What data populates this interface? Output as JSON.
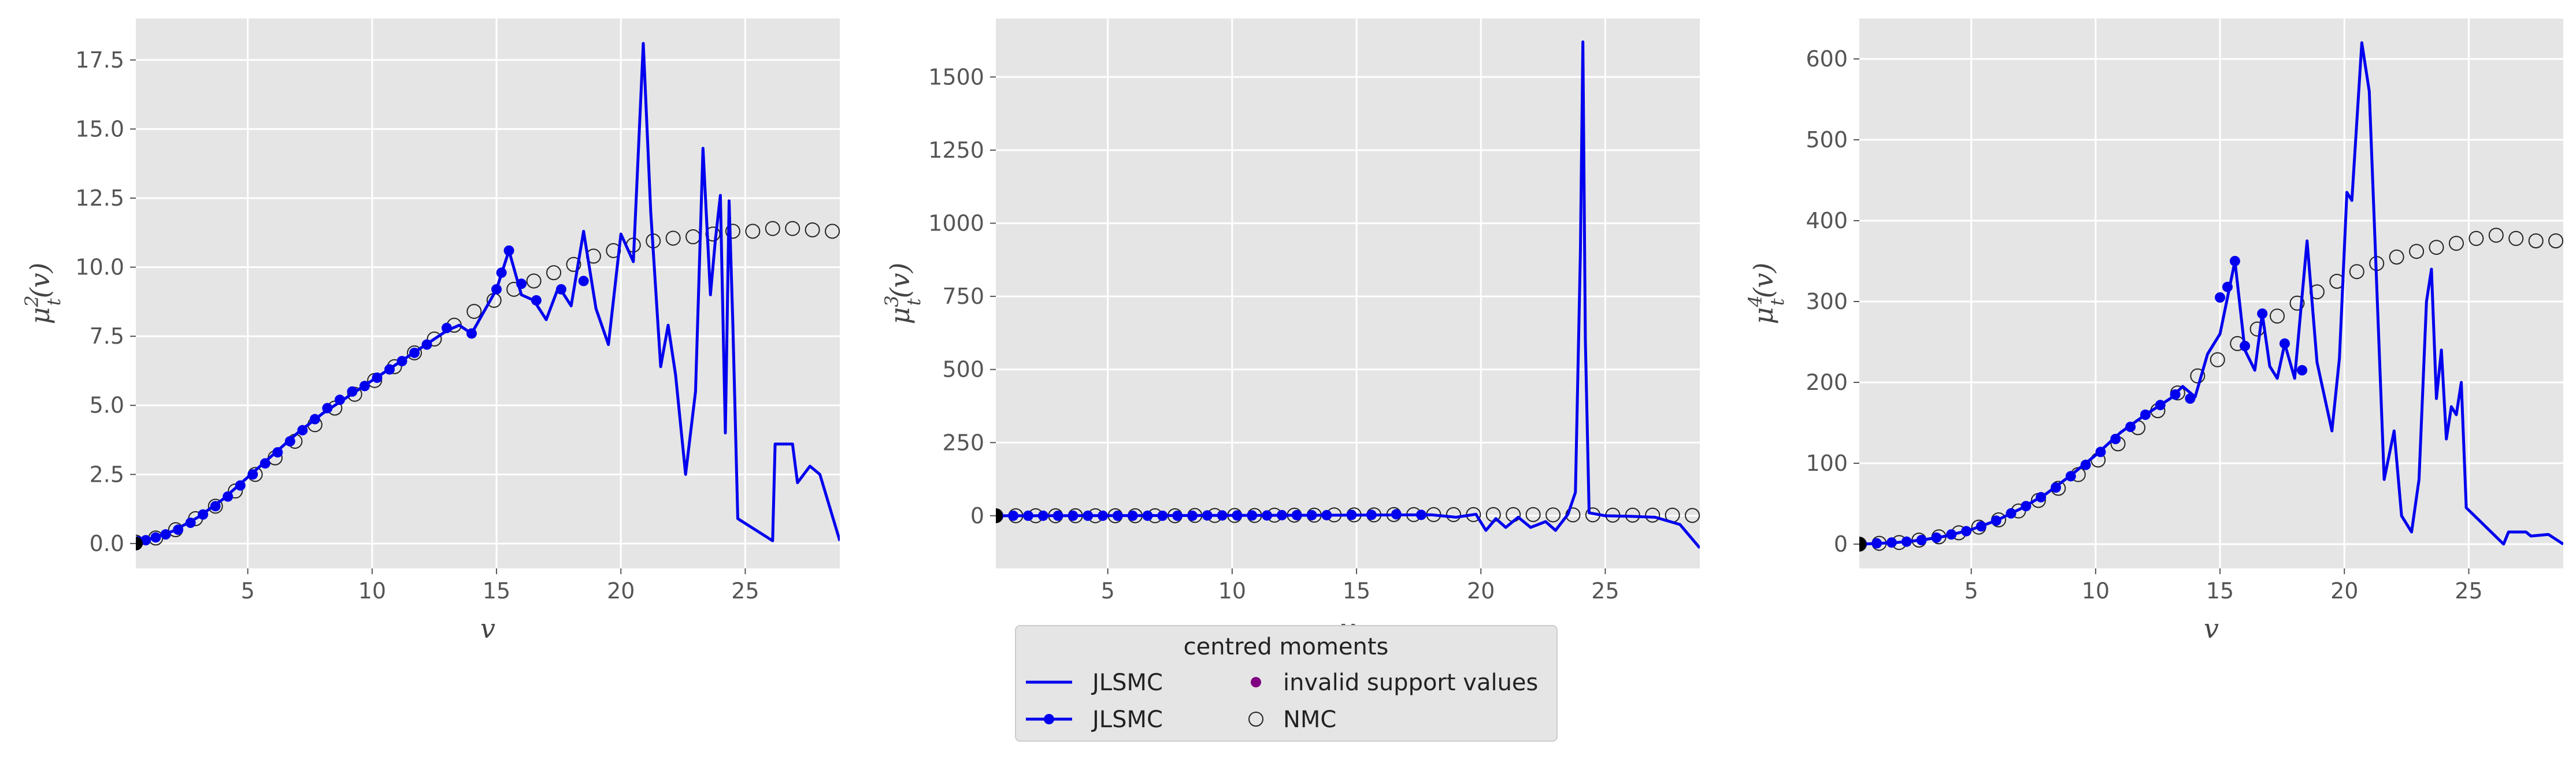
{
  "colors": {
    "jlsmc": "#0000ee",
    "invalid": "#800080",
    "nmc_edge": "#222222",
    "panel_bg": "#e5e5e5",
    "grid": "#ffffff"
  },
  "legend": {
    "title": "centred moments",
    "entries": [
      {
        "label": "JLSMC",
        "kind": "line"
      },
      {
        "label": "JLSMC",
        "kind": "line-marker"
      },
      {
        "label": "invalid support values",
        "kind": "dot"
      },
      {
        "label": "NMC",
        "kind": "open-circle"
      }
    ]
  },
  "chart_data": [
    {
      "type": "line",
      "title": "",
      "xlabel": "v",
      "ylabel": "μ_t^2(v)",
      "ylabel_base": "μ",
      "ylabel_sub": "t",
      "ylabel_sup": "2",
      "ylabel_tail": "(v)",
      "xlim": [
        0.5,
        28.8
      ],
      "ylim": [
        -0.9,
        19.0
      ],
      "xticks": [
        5,
        10,
        15,
        20,
        25
      ],
      "yticks": [
        0.0,
        2.5,
        5.0,
        7.5,
        10.0,
        12.5,
        15.0,
        17.5
      ],
      "ytick_labels": [
        "0.0",
        "2.5",
        "5.0",
        "7.5",
        "10.0",
        "12.5",
        "15.0",
        "17.5"
      ],
      "jlsmc_line": [
        [
          0.5,
          0.05
        ],
        [
          1,
          0.15
        ],
        [
          2,
          0.45
        ],
        [
          3,
          0.95
        ],
        [
          4,
          1.6
        ],
        [
          5,
          2.4
        ],
        [
          6,
          3.2
        ],
        [
          7,
          4.0
        ],
        [
          8,
          4.7
        ],
        [
          9,
          5.3
        ],
        [
          10,
          5.9
        ],
        [
          11,
          6.5
        ],
        [
          12,
          7.1
        ],
        [
          13,
          7.7
        ],
        [
          13.5,
          7.9
        ],
        [
          14,
          7.6
        ],
        [
          14.5,
          8.4
        ],
        [
          15,
          9.2
        ],
        [
          15.5,
          10.6
        ],
        [
          16,
          9.0
        ],
        [
          16.5,
          8.8
        ],
        [
          17,
          8.1
        ],
        [
          17.5,
          9.3
        ],
        [
          18,
          8.6
        ],
        [
          18.5,
          11.3
        ],
        [
          19,
          8.5
        ],
        [
          19.5,
          7.2
        ],
        [
          20,
          11.2
        ],
        [
          20.5,
          10.2
        ],
        [
          20.9,
          18.1
        ],
        [
          21.2,
          12.0
        ],
        [
          21.6,
          6.4
        ],
        [
          21.9,
          7.9
        ],
        [
          22.2,
          6.1
        ],
        [
          22.6,
          2.5
        ],
        [
          23.0,
          5.5
        ],
        [
          23.3,
          14.3
        ],
        [
          23.6,
          9.0
        ],
        [
          23.8,
          11.0
        ],
        [
          24.0,
          12.6
        ],
        [
          24.2,
          4.0
        ],
        [
          24.35,
          12.4
        ],
        [
          24.5,
          8.0
        ],
        [
          24.7,
          0.9
        ],
        [
          26.1,
          0.1
        ],
        [
          26.2,
          3.6
        ],
        [
          26.9,
          3.6
        ],
        [
          27.1,
          2.2
        ],
        [
          27.6,
          2.8
        ],
        [
          28.0,
          2.5
        ],
        [
          28.5,
          1.0
        ],
        [
          28.8,
          0.1
        ]
      ],
      "jlsmc_markers": [
        [
          0.6,
          0.08
        ],
        [
          0.9,
          0.12
        ],
        [
          1.3,
          0.22
        ],
        [
          1.7,
          0.33
        ],
        [
          2.2,
          0.5
        ],
        [
          2.7,
          0.75
        ],
        [
          3.2,
          1.05
        ],
        [
          3.7,
          1.35
        ],
        [
          4.2,
          1.7
        ],
        [
          4.7,
          2.1
        ],
        [
          5.2,
          2.5
        ],
        [
          5.7,
          2.9
        ],
        [
          6.2,
          3.3
        ],
        [
          6.7,
          3.7
        ],
        [
          7.2,
          4.1
        ],
        [
          7.7,
          4.5
        ],
        [
          8.2,
          4.9
        ],
        [
          8.7,
          5.2
        ],
        [
          9.2,
          5.5
        ],
        [
          9.7,
          5.7
        ],
        [
          10.2,
          6.0
        ],
        [
          10.7,
          6.3
        ],
        [
          11.2,
          6.6
        ],
        [
          11.7,
          6.9
        ],
        [
          12.2,
          7.2
        ],
        [
          13.0,
          7.8
        ],
        [
          14.0,
          7.6
        ],
        [
          15.0,
          9.2
        ],
        [
          15.2,
          9.8
        ],
        [
          15.5,
          10.6
        ],
        [
          16.0,
          9.4
        ],
        [
          16.6,
          8.8
        ],
        [
          17.6,
          9.2
        ],
        [
          18.5,
          9.5
        ]
      ],
      "invalid_points": [],
      "nmc_points": [
        [
          0.5,
          0.05
        ],
        [
          1.3,
          0.2
        ],
        [
          2.1,
          0.5
        ],
        [
          2.9,
          0.9
        ],
        [
          3.7,
          1.35
        ],
        [
          4.5,
          1.9
        ],
        [
          5.3,
          2.5
        ],
        [
          6.1,
          3.1
        ],
        [
          6.9,
          3.7
        ],
        [
          7.7,
          4.3
        ],
        [
          8.5,
          4.9
        ],
        [
          9.3,
          5.4
        ],
        [
          10.1,
          5.9
        ],
        [
          10.9,
          6.4
        ],
        [
          11.7,
          6.9
        ],
        [
          12.5,
          7.4
        ],
        [
          13.3,
          7.9
        ],
        [
          14.1,
          8.4
        ],
        [
          14.9,
          8.8
        ],
        [
          15.7,
          9.2
        ],
        [
          16.5,
          9.5
        ],
        [
          17.3,
          9.8
        ],
        [
          18.1,
          10.1
        ],
        [
          18.9,
          10.4
        ],
        [
          19.7,
          10.6
        ],
        [
          20.5,
          10.8
        ],
        [
          21.3,
          10.95
        ],
        [
          22.1,
          11.05
        ],
        [
          22.9,
          11.1
        ],
        [
          23.7,
          11.2
        ],
        [
          24.5,
          11.3
        ],
        [
          25.3,
          11.3
        ],
        [
          26.1,
          11.4
        ],
        [
          26.9,
          11.4
        ],
        [
          27.7,
          11.35
        ],
        [
          28.5,
          11.3
        ]
      ]
    },
    {
      "type": "line",
      "title": "",
      "xlabel": "v",
      "ylabel": "μ_t^3(v)",
      "ylabel_base": "μ",
      "ylabel_sub": "t",
      "ylabel_sup": "3",
      "ylabel_tail": "(v)",
      "xlim": [
        0.5,
        28.8
      ],
      "ylim": [
        -180,
        1700
      ],
      "xticks": [
        5,
        10,
        15,
        20,
        25
      ],
      "yticks": [
        0,
        250,
        500,
        750,
        1000,
        1250,
        1500
      ],
      "ytick_labels": [
        "0",
        "250",
        "500",
        "750",
        "1000",
        "1250",
        "1500"
      ],
      "jlsmc_line": [
        [
          0.5,
          0
        ],
        [
          5,
          0.5
        ],
        [
          10,
          1
        ],
        [
          15,
          2
        ],
        [
          18,
          3
        ],
        [
          19,
          -5
        ],
        [
          19.8,
          5
        ],
        [
          20.2,
          -50
        ],
        [
          20.6,
          -10
        ],
        [
          21.0,
          -40
        ],
        [
          21.5,
          -5
        ],
        [
          22.0,
          -40
        ],
        [
          22.6,
          -20
        ],
        [
          23.0,
          -50
        ],
        [
          23.5,
          5
        ],
        [
          23.8,
          80
        ],
        [
          24.0,
          900
        ],
        [
          24.1,
          1620
        ],
        [
          24.2,
          600
        ],
        [
          24.35,
          10
        ],
        [
          25,
          0
        ],
        [
          26,
          -2
        ],
        [
          27,
          -5
        ],
        [
          28,
          -30
        ],
        [
          28.8,
          -110
        ]
      ],
      "jlsmc_markers": [
        [
          0.6,
          0
        ],
        [
          1.2,
          0
        ],
        [
          1.8,
          0
        ],
        [
          2.4,
          0
        ],
        [
          3.0,
          0
        ],
        [
          3.6,
          0
        ],
        [
          4.2,
          0
        ],
        [
          4.8,
          0
        ],
        [
          5.4,
          0
        ],
        [
          6.0,
          0
        ],
        [
          6.6,
          0
        ],
        [
          7.2,
          0
        ],
        [
          7.8,
          0
        ],
        [
          8.4,
          0
        ],
        [
          9.0,
          1
        ],
        [
          9.6,
          1
        ],
        [
          10.2,
          1
        ],
        [
          10.8,
          1
        ],
        [
          11.4,
          1
        ],
        [
          12.0,
          2
        ],
        [
          12.6,
          2
        ],
        [
          13.2,
          2
        ],
        [
          13.8,
          2
        ],
        [
          14.8,
          3
        ],
        [
          15.6,
          3
        ],
        [
          16.6,
          5
        ],
        [
          17.6,
          3
        ]
      ],
      "invalid_points": [],
      "nmc_points": [
        [
          0.5,
          0
        ],
        [
          1.3,
          0
        ],
        [
          2.1,
          0
        ],
        [
          2.9,
          0
        ],
        [
          3.7,
          0
        ],
        [
          4.5,
          0
        ],
        [
          5.3,
          0
        ],
        [
          6.1,
          0
        ],
        [
          6.9,
          0
        ],
        [
          7.7,
          0
        ],
        [
          8.5,
          1
        ],
        [
          9.3,
          1
        ],
        [
          10.1,
          1
        ],
        [
          10.9,
          1
        ],
        [
          11.7,
          2
        ],
        [
          12.5,
          2
        ],
        [
          13.3,
          2
        ],
        [
          14.1,
          3
        ],
        [
          14.9,
          3
        ],
        [
          15.7,
          3
        ],
        [
          16.5,
          4
        ],
        [
          17.3,
          4
        ],
        [
          18.1,
          4
        ],
        [
          18.9,
          4
        ],
        [
          19.7,
          4
        ],
        [
          20.5,
          4
        ],
        [
          21.3,
          4
        ],
        [
          22.1,
          4
        ],
        [
          22.9,
          3
        ],
        [
          23.7,
          3
        ],
        [
          24.5,
          3
        ],
        [
          25.3,
          2
        ],
        [
          26.1,
          2
        ],
        [
          26.9,
          2
        ],
        [
          27.7,
          2
        ],
        [
          28.5,
          1
        ]
      ]
    },
    {
      "type": "line",
      "title": "",
      "xlabel": "v",
      "ylabel": "μ_t^4(v)",
      "ylabel_base": "μ",
      "ylabel_sub": "t",
      "ylabel_sup": "4",
      "ylabel_tail": "(v)",
      "xlim": [
        0.5,
        28.8
      ],
      "ylim": [
        -30,
        650
      ],
      "xticks": [
        5,
        10,
        15,
        20,
        25
      ],
      "yticks": [
        0,
        100,
        200,
        300,
        400,
        500,
        600
      ],
      "ytick_labels": [
        "0",
        "100",
        "200",
        "300",
        "400",
        "500",
        "600"
      ],
      "jlsmc_line": [
        [
          0.5,
          0
        ],
        [
          1,
          0.5
        ],
        [
          2,
          2
        ],
        [
          3,
          5
        ],
        [
          4,
          10
        ],
        [
          5,
          18
        ],
        [
          6,
          29
        ],
        [
          7,
          44
        ],
        [
          8,
          62
        ],
        [
          9,
          85
        ],
        [
          10,
          110
        ],
        [
          11,
          138
        ],
        [
          12,
          160
        ],
        [
          13,
          180
        ],
        [
          13.5,
          195
        ],
        [
          14,
          182
        ],
        [
          14.5,
          235
        ],
        [
          15,
          260
        ],
        [
          15.3,
          305
        ],
        [
          15.6,
          350
        ],
        [
          16.0,
          240
        ],
        [
          16.4,
          215
        ],
        [
          16.7,
          285
        ],
        [
          17.0,
          220
        ],
        [
          17.3,
          205
        ],
        [
          17.6,
          248
        ],
        [
          18.0,
          205
        ],
        [
          18.5,
          375
        ],
        [
          18.9,
          225
        ],
        [
          19.5,
          140
        ],
        [
          19.8,
          230
        ],
        [
          20.1,
          435
        ],
        [
          20.3,
          425
        ],
        [
          20.7,
          620
        ],
        [
          21.0,
          560
        ],
        [
          21.3,
          320
        ],
        [
          21.6,
          80
        ],
        [
          22.0,
          140
        ],
        [
          22.3,
          35
        ],
        [
          22.7,
          15
        ],
        [
          23.0,
          80
        ],
        [
          23.3,
          300
        ],
        [
          23.5,
          340
        ],
        [
          23.7,
          180
        ],
        [
          23.9,
          240
        ],
        [
          24.1,
          130
        ],
        [
          24.3,
          170
        ],
        [
          24.5,
          160
        ],
        [
          24.7,
          200
        ],
        [
          24.9,
          45
        ],
        [
          26.4,
          0
        ],
        [
          26.6,
          15
        ],
        [
          27.3,
          15
        ],
        [
          27.5,
          10
        ],
        [
          28.2,
          12
        ],
        [
          28.8,
          0
        ]
      ],
      "jlsmc_markers": [
        [
          0.6,
          0
        ],
        [
          1.2,
          1
        ],
        [
          1.8,
          2
        ],
        [
          2.4,
          3
        ],
        [
          3.0,
          5
        ],
        [
          3.6,
          8
        ],
        [
          4.2,
          12
        ],
        [
          4.8,
          16
        ],
        [
          5.4,
          22
        ],
        [
          6.0,
          29
        ],
        [
          6.6,
          38
        ],
        [
          7.2,
          47
        ],
        [
          7.8,
          58
        ],
        [
          8.4,
          70
        ],
        [
          9.0,
          84
        ],
        [
          9.6,
          98
        ],
        [
          10.2,
          114
        ],
        [
          10.8,
          130
        ],
        [
          11.4,
          145
        ],
        [
          12.0,
          160
        ],
        [
          12.6,
          172
        ],
        [
          13.2,
          185
        ],
        [
          13.8,
          180
        ],
        [
          15.0,
          305
        ],
        [
          15.3,
          318
        ],
        [
          15.6,
          350
        ],
        [
          16.0,
          245
        ],
        [
          16.7,
          285
        ],
        [
          17.6,
          248
        ],
        [
          18.3,
          215
        ]
      ],
      "invalid_points": [],
      "nmc_points": [
        [
          0.5,
          0
        ],
        [
          1.3,
          1
        ],
        [
          2.1,
          2
        ],
        [
          2.9,
          5
        ],
        [
          3.7,
          9
        ],
        [
          4.5,
          14
        ],
        [
          5.3,
          21
        ],
        [
          6.1,
          30
        ],
        [
          6.9,
          41
        ],
        [
          7.7,
          54
        ],
        [
          8.5,
          69
        ],
        [
          9.3,
          86
        ],
        [
          10.1,
          104
        ],
        [
          10.9,
          124
        ],
        [
          11.7,
          144
        ],
        [
          12.5,
          165
        ],
        [
          13.3,
          187
        ],
        [
          14.1,
          208
        ],
        [
          14.9,
          228
        ],
        [
          15.7,
          248
        ],
        [
          16.5,
          266
        ],
        [
          17.3,
          282
        ],
        [
          18.1,
          298
        ],
        [
          18.9,
          312
        ],
        [
          19.7,
          325
        ],
        [
          20.5,
          337
        ],
        [
          21.3,
          347
        ],
        [
          22.1,
          355
        ],
        [
          22.9,
          362
        ],
        [
          23.7,
          367
        ],
        [
          24.5,
          372
        ],
        [
          25.3,
          378
        ],
        [
          26.1,
          382
        ],
        [
          26.9,
          378
        ],
        [
          27.7,
          375
        ],
        [
          28.5,
          375
        ]
      ]
    }
  ]
}
